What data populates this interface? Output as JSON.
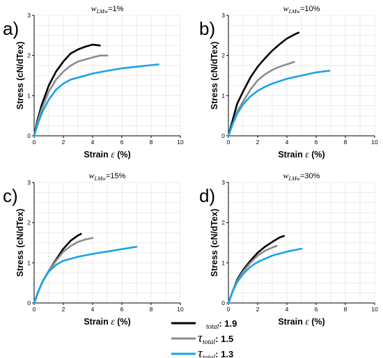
{
  "chart_data": [
    {
      "type": "line",
      "panel_label": "a)",
      "title_var": "w",
      "title_sub": "LMw",
      "title_suffix": "=1%",
      "xlabel_text": "Strain ",
      "xlabel_symbol": "ε",
      "xlabel_unit": " (%)",
      "ylabel": "Stress (cN/dTex)",
      "xlim": [
        0,
        10
      ],
      "ylim": [
        0,
        3
      ],
      "xticks": [
        0,
        2,
        4,
        6,
        8,
        10
      ],
      "yticks": [
        0,
        1,
        2,
        3
      ],
      "grid": true,
      "series": [
        {
          "x": [
            0,
            0.2,
            0.5,
            1.0,
            1.5,
            2.0,
            2.5,
            3.0,
            3.5,
            4.0,
            4.5
          ],
          "y": [
            0,
            0.35,
            0.75,
            1.25,
            1.6,
            1.85,
            2.05,
            2.15,
            2.22,
            2.27,
            2.25
          ]
        },
        {
          "x": [
            0,
            0.2,
            0.5,
            1.0,
            1.5,
            2.0,
            2.5,
            3.0,
            3.5,
            4.0,
            4.5,
            5.0
          ],
          "y": [
            0,
            0.3,
            0.65,
            1.1,
            1.4,
            1.6,
            1.75,
            1.85,
            1.9,
            1.95,
            2.0,
            2.0
          ]
        },
        {
          "x": [
            0,
            0.3,
            0.6,
            1.0,
            1.5,
            2.0,
            2.5,
            3.0,
            4.0,
            5.0,
            6.0,
            7.0,
            8.0,
            8.5
          ],
          "y": [
            0,
            0.35,
            0.62,
            0.9,
            1.15,
            1.3,
            1.4,
            1.45,
            1.55,
            1.62,
            1.68,
            1.72,
            1.76,
            1.78
          ]
        }
      ]
    },
    {
      "type": "line",
      "panel_label": "b)",
      "title_var": "w",
      "title_sub": "LMw",
      "title_suffix": "=10%",
      "xlabel_text": "Strain ",
      "xlabel_symbol": "ε",
      "xlabel_unit": " (%)",
      "ylabel": "Stress (cN/dTex)",
      "xlim": [
        0,
        10
      ],
      "ylim": [
        0,
        3
      ],
      "xticks": [
        0,
        2,
        4,
        6,
        8,
        10
      ],
      "yticks": [
        0,
        1,
        2,
        3
      ],
      "grid": true,
      "series": [
        {
          "x": [
            0,
            0.3,
            0.6,
            1.0,
            1.5,
            2.0,
            2.5,
            3.0,
            3.5,
            4.0,
            4.5,
            4.8
          ],
          "y": [
            0,
            0.4,
            0.8,
            1.1,
            1.45,
            1.72,
            1.93,
            2.12,
            2.28,
            2.42,
            2.52,
            2.57
          ]
        },
        {
          "x": [
            0,
            0.3,
            0.6,
            1.0,
            1.5,
            2.0,
            2.5,
            3.0,
            3.5,
            4.0,
            4.5
          ],
          "y": [
            0,
            0.3,
            0.6,
            0.85,
            1.15,
            1.38,
            1.53,
            1.64,
            1.72,
            1.78,
            1.84
          ]
        },
        {
          "x": [
            0,
            0.3,
            0.6,
            1.0,
            1.5,
            2.0,
            2.5,
            3.0,
            4.0,
            5.0,
            6.0,
            6.9
          ],
          "y": [
            0,
            0.3,
            0.55,
            0.78,
            0.98,
            1.12,
            1.22,
            1.3,
            1.42,
            1.5,
            1.58,
            1.62
          ]
        }
      ]
    },
    {
      "type": "line",
      "panel_label": "c)",
      "title_var": "w",
      "title_sub": "LMw",
      "title_suffix": "=15%",
      "xlabel_text": "Strain ",
      "xlabel_symbol": "ε",
      "xlabel_unit": " (%)",
      "ylabel": "Stress (cN/dTex)",
      "xlim": [
        0,
        10
      ],
      "ylim": [
        0,
        3
      ],
      "xticks": [
        0,
        2,
        4,
        6,
        8,
        10
      ],
      "yticks": [
        0,
        1,
        2,
        3
      ],
      "grid": true,
      "series": [
        {
          "x": [
            0,
            0.3,
            0.6,
            1.0,
            1.5,
            2.0,
            2.5,
            3.0,
            3.2
          ],
          "y": [
            0,
            0.3,
            0.55,
            0.8,
            1.08,
            1.35,
            1.55,
            1.68,
            1.72
          ]
        },
        {
          "x": [
            0,
            0.3,
            0.6,
            1.0,
            1.5,
            2.0,
            2.5,
            3.0,
            3.5,
            4.0
          ],
          "y": [
            0,
            0.3,
            0.55,
            0.8,
            1.05,
            1.28,
            1.42,
            1.52,
            1.58,
            1.62
          ]
        },
        {
          "x": [
            0,
            0.3,
            0.6,
            1.0,
            1.5,
            2.0,
            3.0,
            4.0,
            5.0,
            6.0,
            7.0
          ],
          "y": [
            0,
            0.3,
            0.55,
            0.78,
            0.95,
            1.05,
            1.15,
            1.22,
            1.28,
            1.34,
            1.4
          ]
        }
      ]
    },
    {
      "type": "line",
      "panel_label": "d)",
      "title_var": "w",
      "title_sub": "LMw",
      "title_suffix": "=30%",
      "xlabel_text": "Strain ",
      "xlabel_symbol": "ε",
      "xlabel_unit": " (%)",
      "ylabel": "Stress (cN/dTex)",
      "xlim": [
        0,
        10
      ],
      "ylim": [
        0,
        3
      ],
      "xticks": [
        0,
        2,
        4,
        6,
        8,
        10
      ],
      "yticks": [
        0,
        1,
        2,
        3
      ],
      "grid": true,
      "series": [
        {
          "x": [
            0,
            0.3,
            0.6,
            1.0,
            1.5,
            2.0,
            2.5,
            3.0,
            3.5,
            3.8
          ],
          "y": [
            0,
            0.3,
            0.58,
            0.82,
            1.05,
            1.25,
            1.4,
            1.52,
            1.63,
            1.67
          ]
        },
        {
          "x": [
            0,
            0.3,
            0.6,
            1.0,
            1.5,
            2.0,
            2.5,
            3.0,
            3.3
          ],
          "y": [
            0,
            0.3,
            0.55,
            0.78,
            1.0,
            1.18,
            1.3,
            1.38,
            1.42
          ]
        },
        {
          "x": [
            0,
            0.3,
            0.6,
            1.0,
            1.5,
            2.0,
            2.5,
            3.0,
            4.0,
            5.0
          ],
          "y": [
            0,
            0.3,
            0.52,
            0.72,
            0.9,
            1.02,
            1.1,
            1.18,
            1.28,
            1.35
          ]
        }
      ]
    }
  ],
  "legend": {
    "items": [
      {
        "symbol": "",
        "sub": "total",
        "value": ": 1.9",
        "color": "#000000"
      },
      {
        "symbol": "τ",
        "sub": "total",
        "value": ": 1.5",
        "color": "#8c8c8c"
      },
      {
        "symbol": "τ",
        "sub": "total",
        "value": ": 1.3",
        "color": "#1aa3e8"
      }
    ]
  },
  "series_colors": [
    "#000000",
    "#8c8c8c",
    "#1aa3e8"
  ]
}
